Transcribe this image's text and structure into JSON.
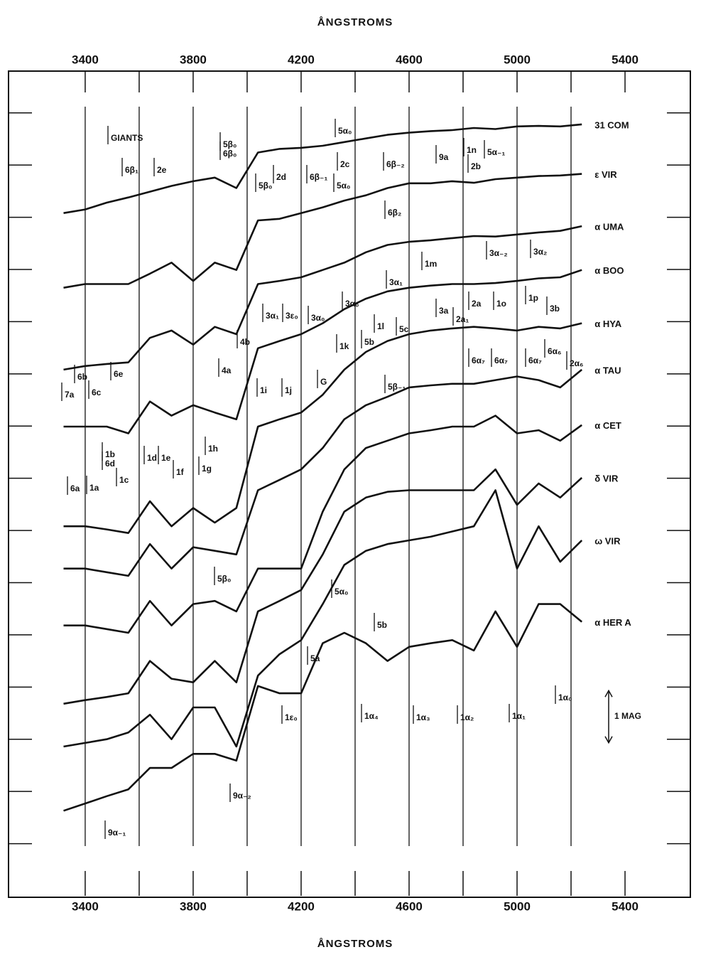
{
  "chart_data": {
    "type": "line",
    "xlabel_top": "ÅNGSTROMS",
    "xlabel": "ÅNGSTROMS",
    "xlim": [
      3116,
      5642
    ],
    "xticks": [
      3400,
      3800,
      4200,
      4600,
      5000,
      5400
    ],
    "xminor_ticks": [
      3600,
      4000,
      4400,
      4800,
      5200
    ],
    "ylim": [
      0,
      15.8
    ],
    "yticks": [
      1,
      2,
      3,
      4,
      5,
      6,
      7,
      8,
      9,
      10,
      11,
      12,
      13,
      14,
      15
    ],
    "grid": true,
    "scale_bar": {
      "value": 1,
      "label": "1 MAG"
    },
    "x": [
      3320,
      3400,
      3480,
      3560,
      3640,
      3720,
      3800,
      3880,
      3960,
      4040,
      4120,
      4200,
      4280,
      4360,
      4440,
      4520,
      4600,
      4680,
      4760,
      4840,
      4920,
      5000,
      5080,
      5160,
      5240
    ],
    "series": [
      {
        "name": "31 COM",
        "color": "#111111",
        "values": [
          13.08,
          13.15,
          13.28,
          13.38,
          13.49,
          13.6,
          13.69,
          13.76,
          13.56,
          14.24,
          14.31,
          14.33,
          14.37,
          14.44,
          14.51,
          14.58,
          14.62,
          14.65,
          14.67,
          14.71,
          14.69,
          14.74,
          14.75,
          14.74,
          14.78
        ]
      },
      {
        "name": "ε VIR",
        "color": "#111111",
        "values": [
          11.65,
          11.72,
          11.72,
          11.72,
          11.92,
          12.13,
          11.78,
          12.13,
          11.99,
          12.94,
          12.97,
          13.08,
          13.19,
          13.32,
          13.42,
          13.56,
          13.65,
          13.65,
          13.69,
          13.66,
          13.73,
          13.76,
          13.79,
          13.8,
          13.83
        ]
      },
      {
        "name": "α UMA",
        "color": "#111111",
        "values": [
          10.08,
          10.15,
          10.19,
          10.22,
          10.69,
          10.83,
          10.56,
          10.9,
          10.76,
          11.72,
          11.78,
          11.85,
          11.99,
          12.13,
          12.33,
          12.47,
          12.53,
          12.56,
          12.6,
          12.64,
          12.63,
          12.67,
          12.71,
          12.74,
          12.83
        ]
      },
      {
        "name": "α BOO",
        "color": "#111111",
        "values": [
          8.99,
          8.99,
          8.99,
          8.86,
          9.47,
          9.2,
          9.4,
          9.26,
          9.13,
          10.49,
          10.63,
          10.76,
          10.97,
          11.24,
          11.44,
          11.58,
          11.65,
          11.69,
          11.72,
          11.72,
          11.74,
          11.78,
          11.83,
          11.85,
          11.99
        ]
      },
      {
        "name": "α HYA",
        "color": "#111111",
        "values": [
          7.08,
          7.08,
          7.02,
          6.95,
          7.56,
          7.08,
          7.43,
          7.15,
          7.43,
          8.99,
          9.13,
          9.26,
          9.6,
          10.08,
          10.42,
          10.63,
          10.76,
          10.83,
          10.87,
          10.9,
          10.87,
          10.83,
          10.9,
          10.87,
          10.97
        ]
      },
      {
        "name": "α TAU",
        "color": "#111111",
        "values": [
          6.27,
          6.27,
          6.2,
          6.13,
          6.74,
          6.27,
          6.68,
          6.61,
          6.54,
          7.77,
          7.97,
          8.17,
          8.58,
          9.13,
          9.4,
          9.56,
          9.74,
          9.78,
          9.81,
          9.81,
          9.88,
          9.95,
          9.88,
          9.74,
          10.08
        ]
      },
      {
        "name": "α CET",
        "color": "#111111",
        "values": [
          5.18,
          5.18,
          5.11,
          5.04,
          5.65,
          5.18,
          5.59,
          5.65,
          5.45,
          6.27,
          6.27,
          6.27,
          7.36,
          8.17,
          8.58,
          8.72,
          8.86,
          8.92,
          8.99,
          8.99,
          9.2,
          8.86,
          8.92,
          8.72,
          9.02
        ]
      },
      {
        "name": "δ VIR",
        "color": "#111111",
        "values": [
          3.68,
          3.75,
          3.81,
          3.88,
          4.5,
          4.16,
          4.09,
          4.5,
          4.09,
          5.45,
          5.65,
          5.86,
          6.54,
          7.36,
          7.63,
          7.74,
          7.77,
          7.77,
          7.77,
          7.77,
          8.17,
          7.49,
          7.9,
          7.63,
          8.01
        ]
      },
      {
        "name": "ω VIR",
        "color": "#111111",
        "values": [
          2.86,
          2.93,
          3.0,
          3.13,
          3.47,
          3.0,
          3.61,
          3.61,
          2.86,
          4.22,
          4.63,
          4.9,
          5.59,
          6.34,
          6.61,
          6.74,
          6.81,
          6.88,
          6.98,
          7.08,
          7.77,
          6.27,
          7.08,
          6.4,
          6.81
        ]
      },
      {
        "name": "α HER A",
        "color": "#111111",
        "values": [
          1.63,
          1.77,
          1.91,
          2.04,
          2.45,
          2.45,
          2.72,
          2.72,
          2.59,
          4.02,
          3.88,
          3.88,
          4.84,
          5.04,
          4.84,
          4.5,
          4.77,
          4.84,
          4.9,
          4.7,
          5.45,
          4.77,
          5.59,
          5.59,
          5.25
        ]
      }
    ],
    "annotations": [
      "GIANTS",
      "6β₁",
      "2e",
      "5β₀",
      "6β₀",
      "5α₀",
      "2d",
      "5β₀",
      "6β₋₁",
      "2c",
      "5α₀",
      "6β₋₂",
      "9a",
      "1n",
      "5α₋₁",
      "2b",
      "6β₂",
      "1m",
      "3α₋₂",
      "3α₂",
      "3α₁",
      "3α₁",
      "3ε₀",
      "3α₀",
      "3α₀",
      "1l",
      "5c",
      "3a",
      "2a₁",
      "2a",
      "1o",
      "1p",
      "3b",
      "1k",
      "5b",
      "6α₇",
      "6α₇",
      "6α₇",
      "6α₆",
      "2α₆",
      "4b",
      "4a",
      "1i",
      "1j",
      "G",
      "5β₋₁",
      "7a",
      "6b",
      "6c",
      "6e",
      "1b",
      "6d",
      "1d",
      "1e",
      "1f",
      "1h",
      "1g",
      "6a",
      "1a",
      "1c",
      "5β₀",
      "5α₀",
      "5b",
      "5a",
      "1ε₀",
      "1α₄",
      "1α₃",
      "1α₂",
      "1α₁",
      "1α₀",
      "9α₋₂",
      "9α₋₁"
    ]
  }
}
